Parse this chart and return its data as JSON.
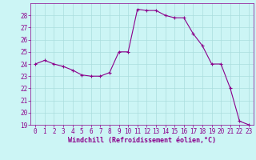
{
  "x": [
    0,
    1,
    2,
    3,
    4,
    5,
    6,
    7,
    8,
    9,
    10,
    11,
    12,
    13,
    14,
    15,
    16,
    17,
    18,
    19,
    20,
    21,
    22,
    23
  ],
  "y": [
    24.0,
    24.3,
    24.0,
    23.8,
    23.5,
    23.1,
    23.0,
    23.0,
    23.3,
    25.0,
    25.0,
    28.5,
    28.4,
    28.4,
    28.0,
    27.8,
    27.8,
    26.5,
    25.5,
    24.0,
    24.0,
    22.0,
    19.3,
    19.0
  ],
  "line_color": "#8B008B",
  "marker": "+",
  "marker_size": 3,
  "marker_color": "#8B008B",
  "bg_color": "#ccf5f5",
  "grid_color": "#aadddd",
  "xlabel": "Windchill (Refroidissement éolien,°C)",
  "xlabel_color": "#8B008B",
  "tick_color": "#8B008B",
  "ylim": [
    19,
    29
  ],
  "xlim": [
    -0.5,
    23.5
  ],
  "yticks": [
    19,
    20,
    21,
    22,
    23,
    24,
    25,
    26,
    27,
    28
  ],
  "xticks": [
    0,
    1,
    2,
    3,
    4,
    5,
    6,
    7,
    8,
    9,
    10,
    11,
    12,
    13,
    14,
    15,
    16,
    17,
    18,
    19,
    20,
    21,
    22,
    23
  ],
  "tick_fontsize": 5.5,
  "xlabel_fontsize": 6.0,
  "linewidth": 0.8
}
